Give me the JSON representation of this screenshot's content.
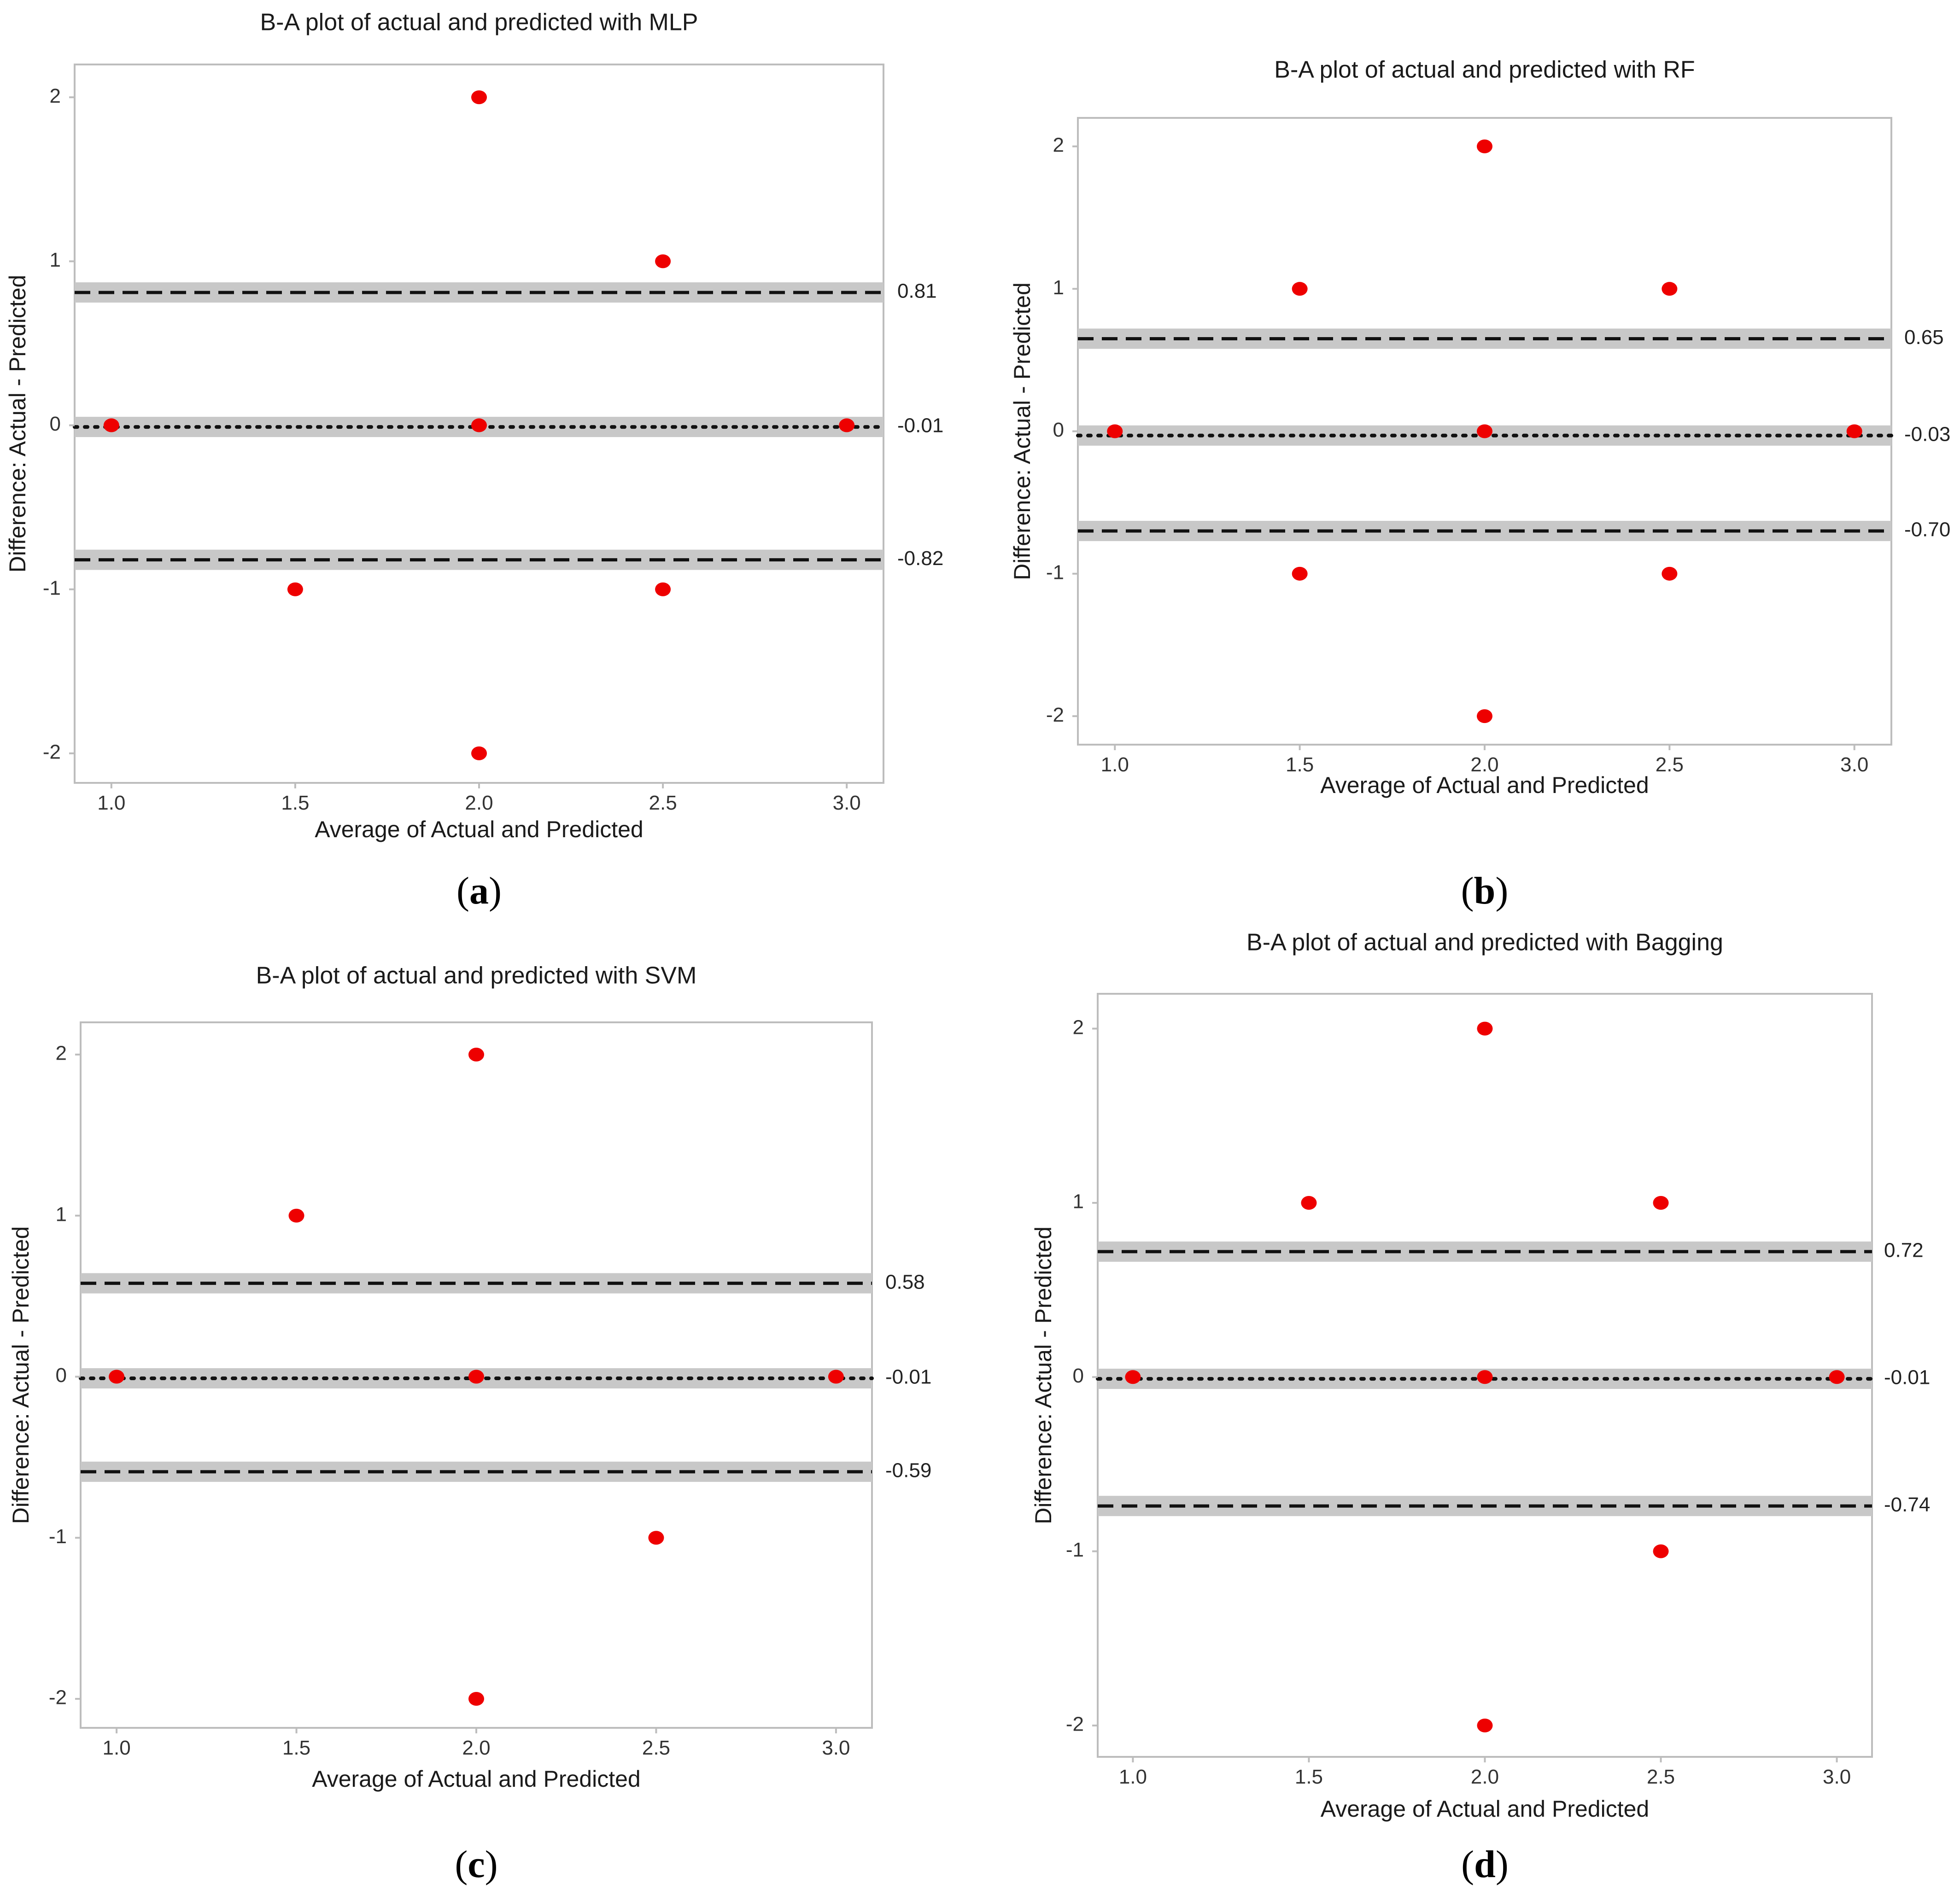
{
  "chart_data": [
    {
      "type": "scatter",
      "panel_label": "a",
      "title": "B-A plot of actual and predicted with MLP",
      "xlabel": "Average of Actual and Predicted",
      "ylabel": "Difference: Actual - Predicted",
      "xlim": [
        0.9,
        3.1
      ],
      "ylim": [
        -2.18,
        2.2
      ],
      "x_ticks": [
        1.0,
        1.5,
        2.0,
        2.5,
        3.0
      ],
      "x_tick_labels": [
        "1.0",
        "1.5",
        "2.0",
        "2.5",
        "3.0"
      ],
      "y_ticks": [
        2,
        1,
        0,
        -1,
        -2
      ],
      "y_tick_labels": [
        "2",
        "1",
        "0",
        "-1",
        "-2"
      ],
      "points": [
        [
          2.0,
          2
        ],
        [
          2.5,
          1
        ],
        [
          1.0,
          0
        ],
        [
          2.0,
          0
        ],
        [
          3.0,
          0
        ],
        [
          1.5,
          -1
        ],
        [
          2.5,
          -1
        ],
        [
          2.0,
          -2
        ]
      ],
      "lines": [
        {
          "kind": "upper-loa",
          "value": 0.81,
          "label": "0.81"
        },
        {
          "kind": "mean-bias",
          "value": -0.01,
          "label": "-0.01"
        },
        {
          "kind": "lower-loa",
          "value": -0.82,
          "label": "-0.82"
        }
      ]
    },
    {
      "type": "scatter",
      "panel_label": "b",
      "title": "B-A plot of actual and predicted with RF",
      "xlabel": "Average of Actual and Predicted",
      "ylabel": "Difference: Actual - Predicted",
      "xlim": [
        0.9,
        3.1
      ],
      "ylim": [
        -2.2,
        2.2
      ],
      "x_ticks": [
        1.0,
        1.5,
        2.0,
        2.5,
        3.0
      ],
      "x_tick_labels": [
        "1.0",
        "1.5",
        "2.0",
        "2.5",
        "3.0"
      ],
      "y_ticks": [
        2,
        1,
        0,
        -1,
        -2
      ],
      "y_tick_labels": [
        "2",
        "1",
        "0",
        "-1",
        "-2"
      ],
      "points": [
        [
          2.0,
          2
        ],
        [
          1.5,
          1
        ],
        [
          2.5,
          1
        ],
        [
          1.0,
          0
        ],
        [
          2.0,
          0
        ],
        [
          3.0,
          0
        ],
        [
          1.5,
          -1
        ],
        [
          2.5,
          -1
        ],
        [
          2.0,
          -2
        ]
      ],
      "lines": [
        {
          "kind": "upper-loa",
          "value": 0.65,
          "label": "0.65"
        },
        {
          "kind": "mean-bias",
          "value": -0.03,
          "label": "-0.03"
        },
        {
          "kind": "lower-loa",
          "value": -0.7,
          "label": "-0.70"
        }
      ]
    },
    {
      "type": "scatter",
      "panel_label": "c",
      "title": "B-A plot of actual and predicted with SVM",
      "xlabel": "Average of Actual and Predicted",
      "ylabel": "Difference: Actual - Predicted",
      "xlim": [
        0.9,
        3.1
      ],
      "ylim": [
        -2.18,
        2.2
      ],
      "x_ticks": [
        1.0,
        1.5,
        2.0,
        2.5,
        3.0
      ],
      "x_tick_labels": [
        "1.0",
        "1.5",
        "2.0",
        "2.5",
        "3.0"
      ],
      "y_ticks": [
        2,
        1,
        0,
        -1,
        -2
      ],
      "y_tick_labels": [
        "2",
        "1",
        "0",
        "-1",
        "-2"
      ],
      "points": [
        [
          2.0,
          2
        ],
        [
          1.5,
          1
        ],
        [
          1.0,
          0
        ],
        [
          2.0,
          0
        ],
        [
          3.0,
          0
        ],
        [
          2.5,
          -1
        ],
        [
          2.0,
          -2
        ]
      ],
      "lines": [
        {
          "kind": "upper-loa",
          "value": 0.58,
          "label": "0.58"
        },
        {
          "kind": "mean-bias",
          "value": -0.01,
          "label": "-0.01"
        },
        {
          "kind": "lower-loa",
          "value": -0.59,
          "label": "-0.59"
        }
      ]
    },
    {
      "type": "scatter",
      "panel_label": "d",
      "title": "B-A plot of actual and predicted with Bagging",
      "xlabel": "Average of Actual and Predicted",
      "ylabel": "Difference: Actual - Predicted",
      "xlim": [
        0.9,
        3.1
      ],
      "ylim": [
        -2.18,
        2.2
      ],
      "x_ticks": [
        1.0,
        1.5,
        2.0,
        2.5,
        3.0
      ],
      "x_tick_labels": [
        "1.0",
        "1.5",
        "2.0",
        "2.5",
        "3.0"
      ],
      "y_ticks": [
        2,
        1,
        0,
        -1,
        -2
      ],
      "y_tick_labels": [
        "2",
        "1",
        "0",
        "-1",
        "-2"
      ],
      "points": [
        [
          2.0,
          2
        ],
        [
          1.5,
          1
        ],
        [
          2.5,
          1
        ],
        [
          1.0,
          0
        ],
        [
          2.0,
          0
        ],
        [
          3.0,
          0
        ],
        [
          2.5,
          -1
        ],
        [
          2.0,
          -2
        ]
      ],
      "lines": [
        {
          "kind": "upper-loa",
          "value": 0.72,
          "label": "0.72"
        },
        {
          "kind": "mean-bias",
          "value": -0.01,
          "label": "-0.01"
        },
        {
          "kind": "lower-loa",
          "value": -0.74,
          "label": "-0.74"
        }
      ]
    }
  ],
  "colors": {
    "point": "#ee0000",
    "band": "#c8c8c8",
    "line": "#111111",
    "frame": "#bdbdbd"
  }
}
